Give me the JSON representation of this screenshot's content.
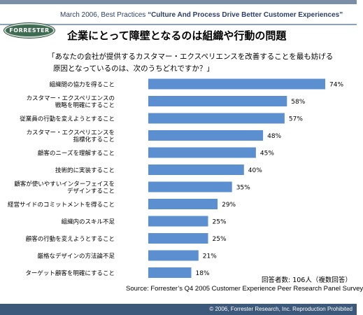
{
  "header": {
    "subtitle_prefix": "March 2006, Best Practices ",
    "subtitle_bold": "“Culture And Process Drive Better Customer Experiences”",
    "logo_text": "FORRESTER",
    "title": "企業にとって障壁となるのは組織や行動の問題"
  },
  "question": {
    "line1": "「あなたの会社が提供するカスタマー・エクスペリエンスを改善することを最も妨げる",
    "line2": "原因となっているのは、次のうちどれですか？」"
  },
  "chart_data": {
    "type": "bar",
    "orientation": "horizontal",
    "categories": [
      [
        "組織間の協力を得ること"
      ],
      [
        "カスタマー・エクスペリエンスの",
        "戦略を明確にすること"
      ],
      [
        "従業員の行動を変えようとすること"
      ],
      [
        "カスタマー・エクスペリエンスを",
        "指標化すること"
      ],
      [
        "顧客のニーズを理解すること"
      ],
      [
        "技術的に実装すること"
      ],
      [
        "顧客が使いやすいインターフェイスを",
        "デザインすること"
      ],
      [
        "経営サイドのコミットメントを得ること"
      ],
      [
        "組織内のスキル不足"
      ],
      [
        "顧客の行動を変えようとすること"
      ],
      [
        "厳格なデザインの方法論不足"
      ],
      [
        "ターゲット顧客を明確にすること"
      ]
    ],
    "values": [
      74,
      58,
      57,
      48,
      45,
      40,
      35,
      29,
      25,
      25,
      21,
      18
    ],
    "value_labels": [
      "74%",
      "58%",
      "57%",
      "48%",
      "45%",
      "40%",
      "35%",
      "29%",
      "25%",
      "25%",
      "21%",
      "18%"
    ],
    "bar_color": "#5b8fd0",
    "xlim": [
      0,
      100
    ]
  },
  "notes": {
    "respondents": "回答者数: 106人（複数回答）",
    "source": "Source: Forrester’s Q4 2005 Customer Experience Peer Research Panel Survey"
  },
  "footer": {
    "copyright": "© 2006, Forrester Research, Inc. Reproduction Prohibited"
  }
}
